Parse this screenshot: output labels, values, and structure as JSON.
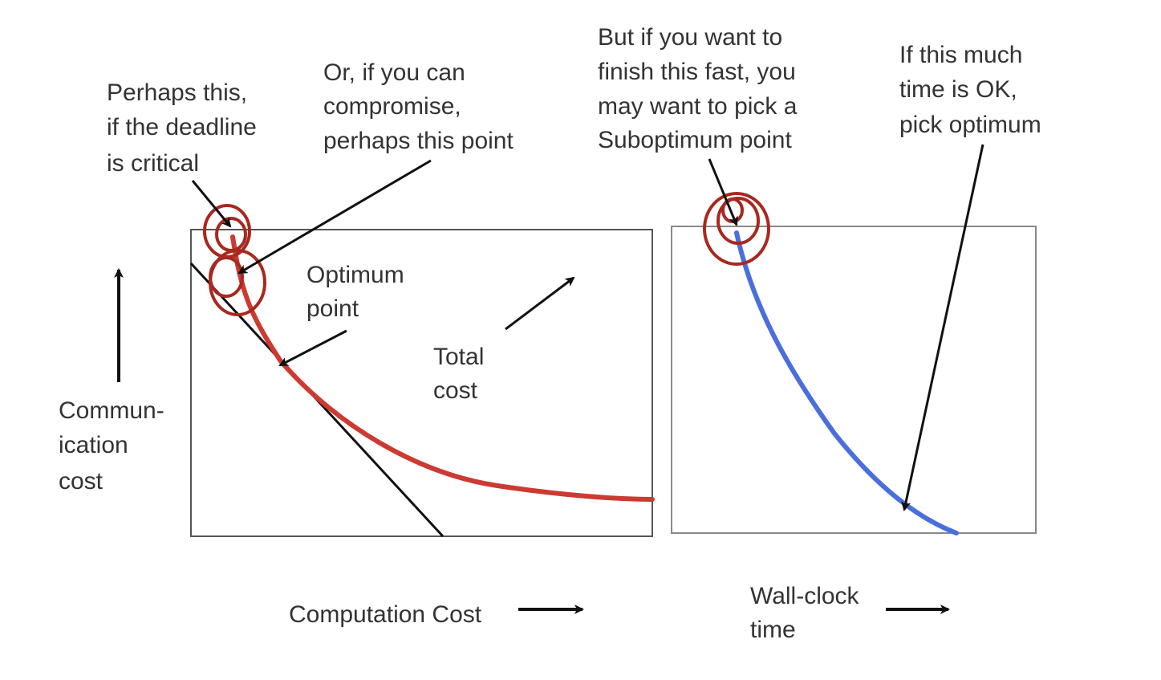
{
  "left_panel": {
    "y_axis_label": [
      "Commun-",
      "ication",
      "cost"
    ],
    "x_axis_label": "Computation Cost",
    "annotations": {
      "optimum": [
        "Optimum",
        "point"
      ],
      "total_cost": [
        "Total",
        "cost"
      ],
      "deadline": [
        "Perhaps this,",
        "if the deadline",
        "is critical"
      ],
      "compromise": [
        "Or, if you can",
        "compromise,",
        "perhaps this point"
      ]
    }
  },
  "right_panel": {
    "x_axis_label": [
      "Wall-clock",
      "time"
    ],
    "annotations": {
      "suboptimum": [
        "But if you want to",
        "finish this fast, you",
        "may want to pick a",
        "Suboptimum point"
      ],
      "optimum": [
        "If this much",
        "time is OK,",
        "pick optimum"
      ]
    }
  },
  "colors": {
    "total_cost_curve": "#cc3a32",
    "time_curve": "#4a6fdc",
    "circle_marks": "#a8281f",
    "frame": "#555555",
    "arrows": "#111111",
    "text": "#333333"
  }
}
